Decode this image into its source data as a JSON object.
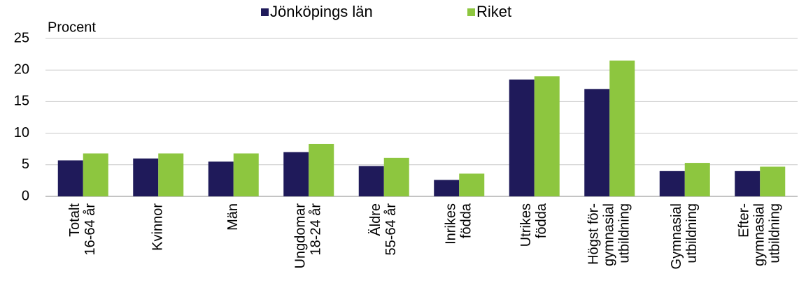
{
  "chart_data": {
    "type": "bar",
    "y_label": "Procent",
    "categories": [
      "Totalt\n16-64 år",
      "Kvinnor",
      "Män",
      "Ungdomar\n18-24 år",
      "Äldre\n55-64 år",
      "Inrikes\nfödda",
      "Utrikes\nfödda",
      "Högst för-\ngymnasial\nutbildning",
      "Gymnasial\nutbildning",
      "Efter-\ngymnasial\nutbildning"
    ],
    "series": [
      {
        "name": "Jönköpings län",
        "color": "#1f1a5a",
        "values": [
          5.7,
          6.0,
          5.5,
          7.0,
          4.8,
          2.6,
          18.5,
          17.0,
          4.0,
          4.0
        ]
      },
      {
        "name": "Riket",
        "color": "#8dc63f",
        "values": [
          6.8,
          6.8,
          6.8,
          8.3,
          6.1,
          3.6,
          19.0,
          21.5,
          5.3,
          4.7
        ]
      }
    ],
    "ylim": [
      0,
      25
    ],
    "yticks": [
      0,
      5,
      10,
      15,
      20,
      25
    ],
    "grid": true,
    "legend": "top"
  }
}
